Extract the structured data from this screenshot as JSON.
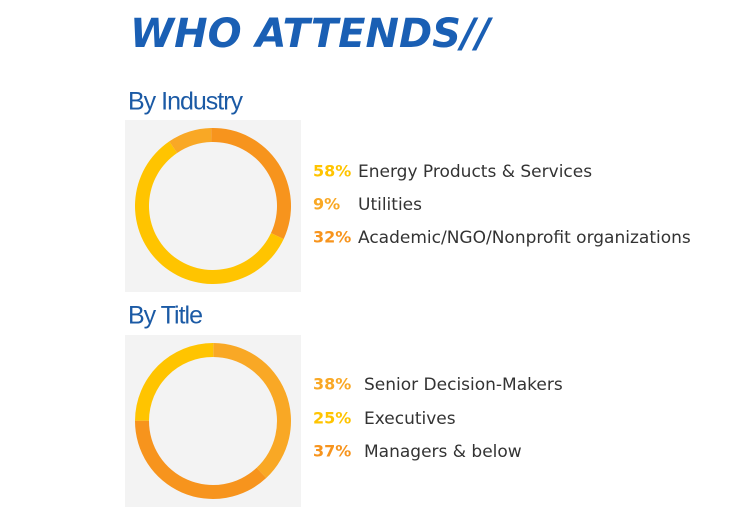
{
  "title": "WHO ATTENDS//",
  "chart_data": [
    {
      "type": "donut",
      "title": "By Industry",
      "categories": [
        "Energy Products & Services",
        "Utilities",
        "Academic/NGO/Nonprofit organizations"
      ],
      "values": [
        58,
        9,
        32
      ],
      "value_labels": [
        "58%",
        "9%",
        "32%"
      ],
      "colors": [
        "#ffc400",
        "#f9a825",
        "#f7941d"
      ]
    },
    {
      "type": "donut",
      "title": "By Title",
      "categories": [
        "Senior Decision-Makers",
        "Executives",
        "Managers & below"
      ],
      "values": [
        38,
        25,
        37
      ],
      "value_labels": [
        "38%",
        "25%",
        "37%"
      ],
      "colors": [
        "#f9a825",
        "#ffc400",
        "#f7941d"
      ]
    }
  ]
}
